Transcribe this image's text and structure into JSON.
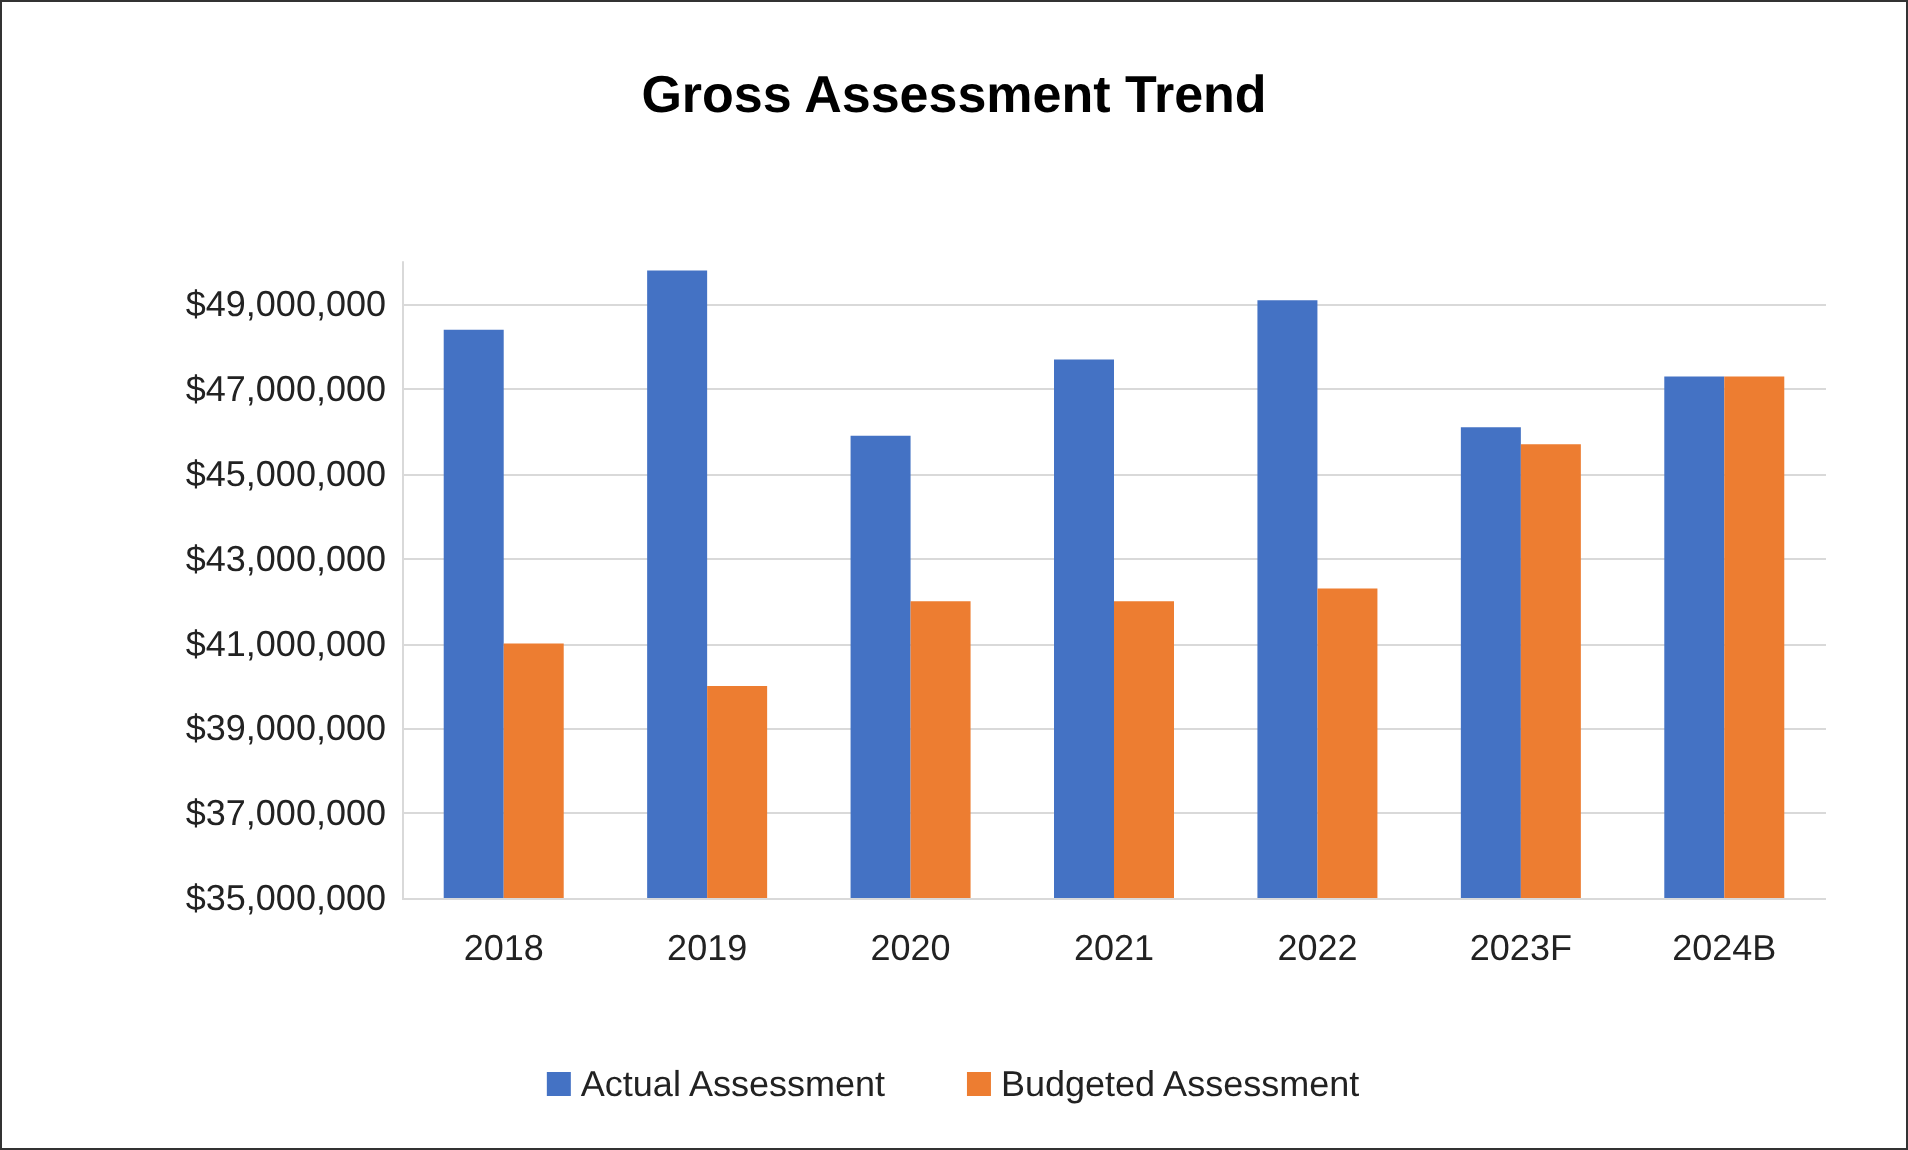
{
  "chart_data": {
    "type": "bar",
    "title": "Gross Assessment Trend",
    "categories": [
      "2018",
      "2019",
      "2020",
      "2021",
      "2022",
      "2023F",
      "2024B"
    ],
    "series": [
      {
        "name": "Actual Assessment",
        "color": "#4472c4",
        "values": [
          48400000,
          49800000,
          45900000,
          47700000,
          49100000,
          46100000,
          47300000
        ]
      },
      {
        "name": "Budgeted Assessment",
        "color": "#ed7d31",
        "values": [
          41000000,
          40000000,
          42000000,
          42000000,
          42300000,
          45700000,
          47300000
        ]
      }
    ],
    "ylim": [
      35000000,
      50000000
    ],
    "yticks": [
      {
        "value": 35000000,
        "label": "$35,000,000"
      },
      {
        "value": 37000000,
        "label": "$37,000,000"
      },
      {
        "value": 39000000,
        "label": "$39,000,000"
      },
      {
        "value": 41000000,
        "label": "$41,000,000"
      },
      {
        "value": 43000000,
        "label": "$43,000,000"
      },
      {
        "value": 45000000,
        "label": "$45,000,000"
      },
      {
        "value": 47000000,
        "label": "$47,000,000"
      },
      {
        "value": 49000000,
        "label": "$49,000,000"
      }
    ],
    "grid": "y",
    "legend": "bottom"
  }
}
